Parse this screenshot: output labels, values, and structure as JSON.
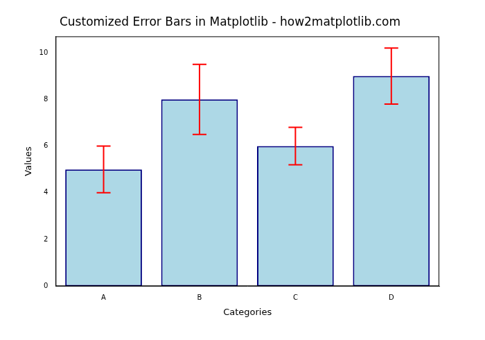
{
  "chart_data": {
    "type": "bar",
    "title": "Customized Error Bars in Matplotlib - how2matplotlib.com",
    "x_label": "Categories",
    "y_label": "Values",
    "categories": [
      "A",
      "B",
      "C",
      "D"
    ],
    "values": [
      5,
      8,
      6,
      9
    ],
    "errors": [
      1,
      1.5,
      0.8,
      1.2
    ],
    "color": "#add8e6",
    "ylim": [
      0,
      10.7
    ],
    "yticks": [
      0,
      2,
      4,
      6,
      8,
      10
    ],
    "grid": false
  }
}
